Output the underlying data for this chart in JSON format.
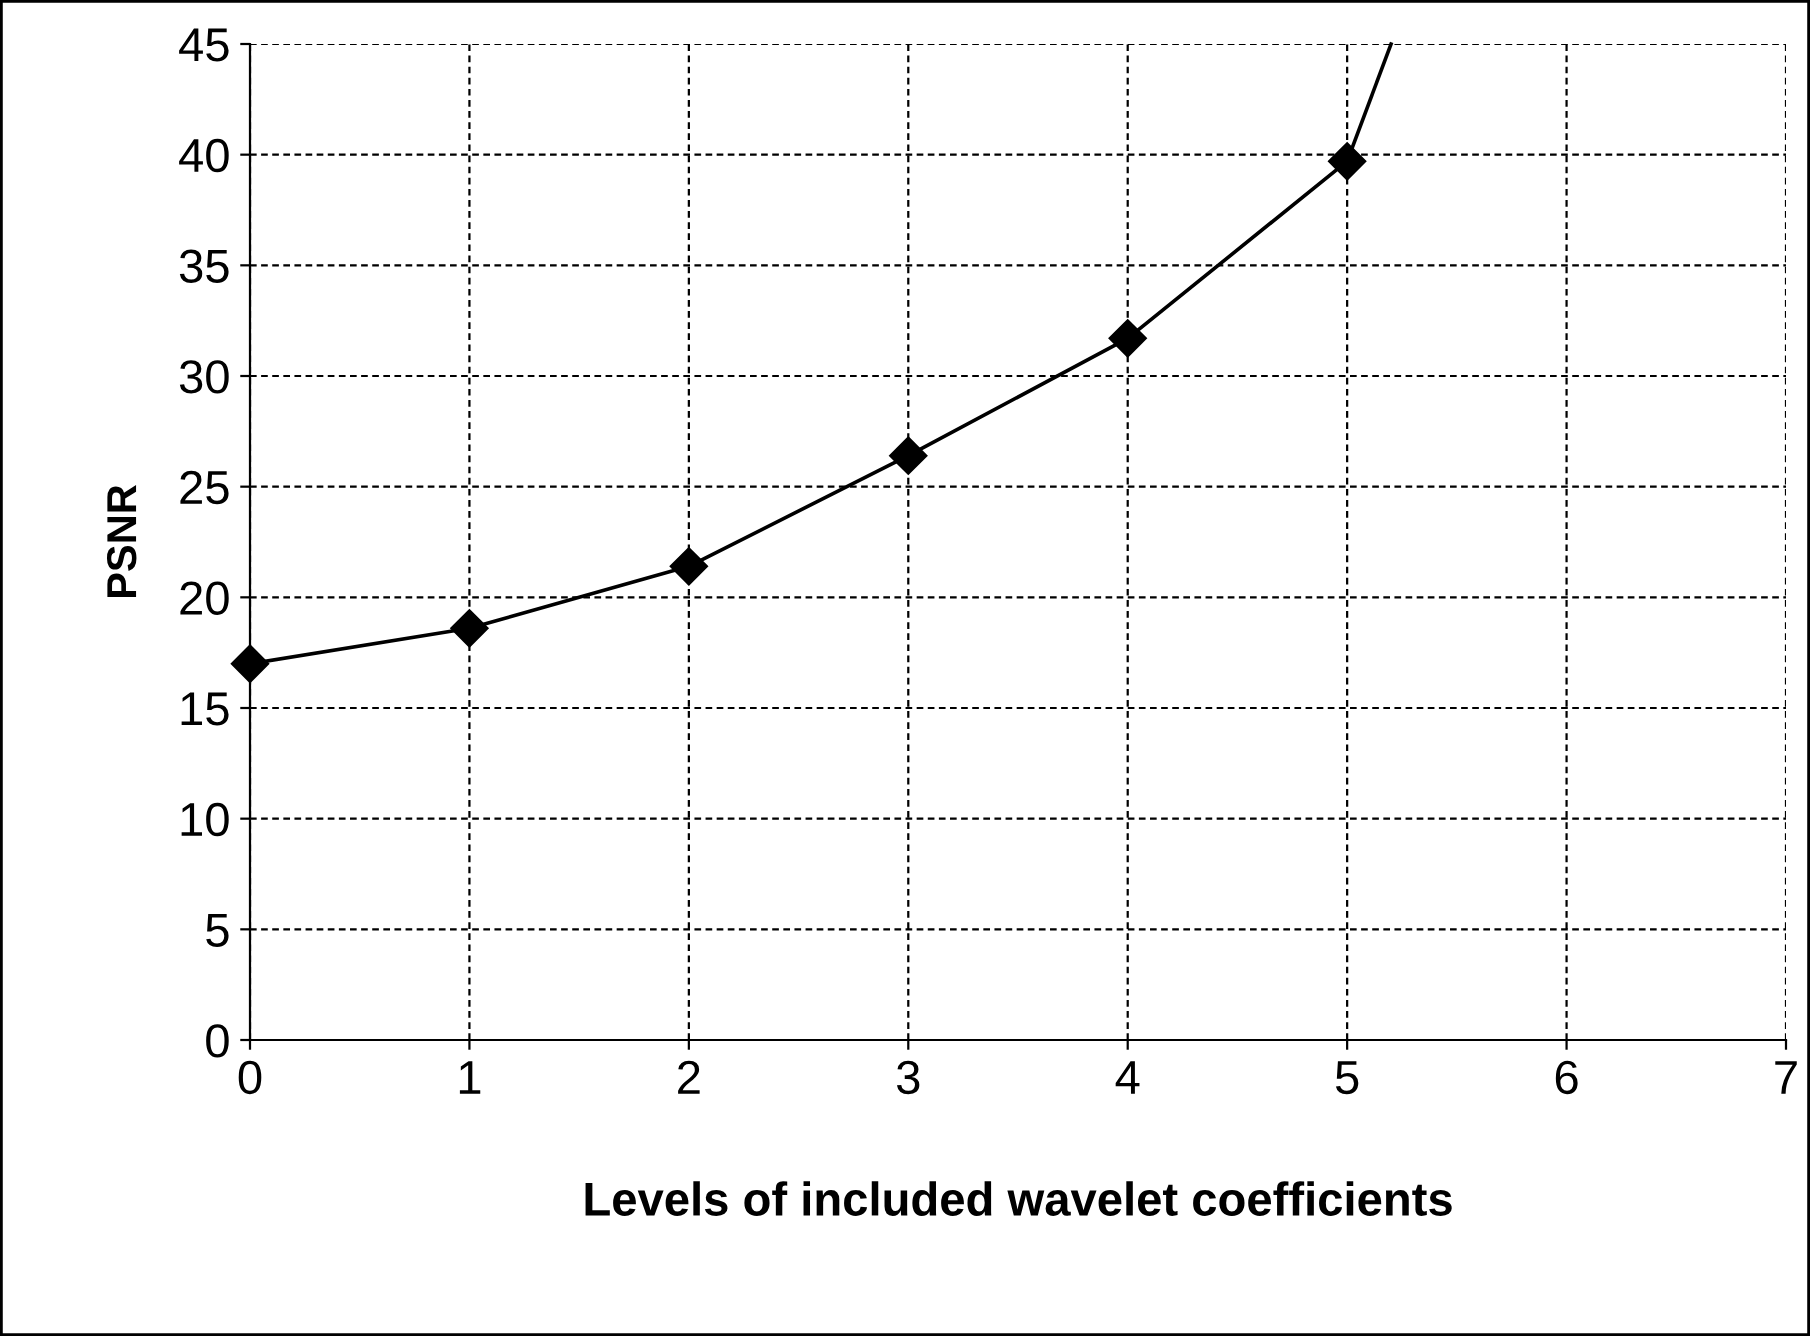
{
  "chart_data": {
    "type": "line",
    "xlabel": "Levels of included wavelet coefficients",
    "ylabel": "PSNR",
    "series": [
      {
        "color": "#000000",
        "x": [
          0,
          1,
          2,
          3,
          4,
          5
        ],
        "values": [
          17,
          18.6,
          21.4,
          26.4,
          31.7,
          39.7
        ],
        "marker": "diamond"
      },
      {
        "color": "#000000",
        "x": [
          5,
          5.2
        ],
        "values": [
          39.7,
          45
        ],
        "marker": "none"
      }
    ],
    "xlim": [
      0,
      7
    ],
    "xticks": [
      0,
      1,
      2,
      3,
      4,
      5,
      6,
      7
    ],
    "ylim": [
      0,
      45
    ],
    "yticks": [
      0,
      5,
      10,
      15,
      20,
      25,
      30,
      35,
      40,
      45
    ],
    "grid": true,
    "line_style": "solid",
    "legend": false
  }
}
